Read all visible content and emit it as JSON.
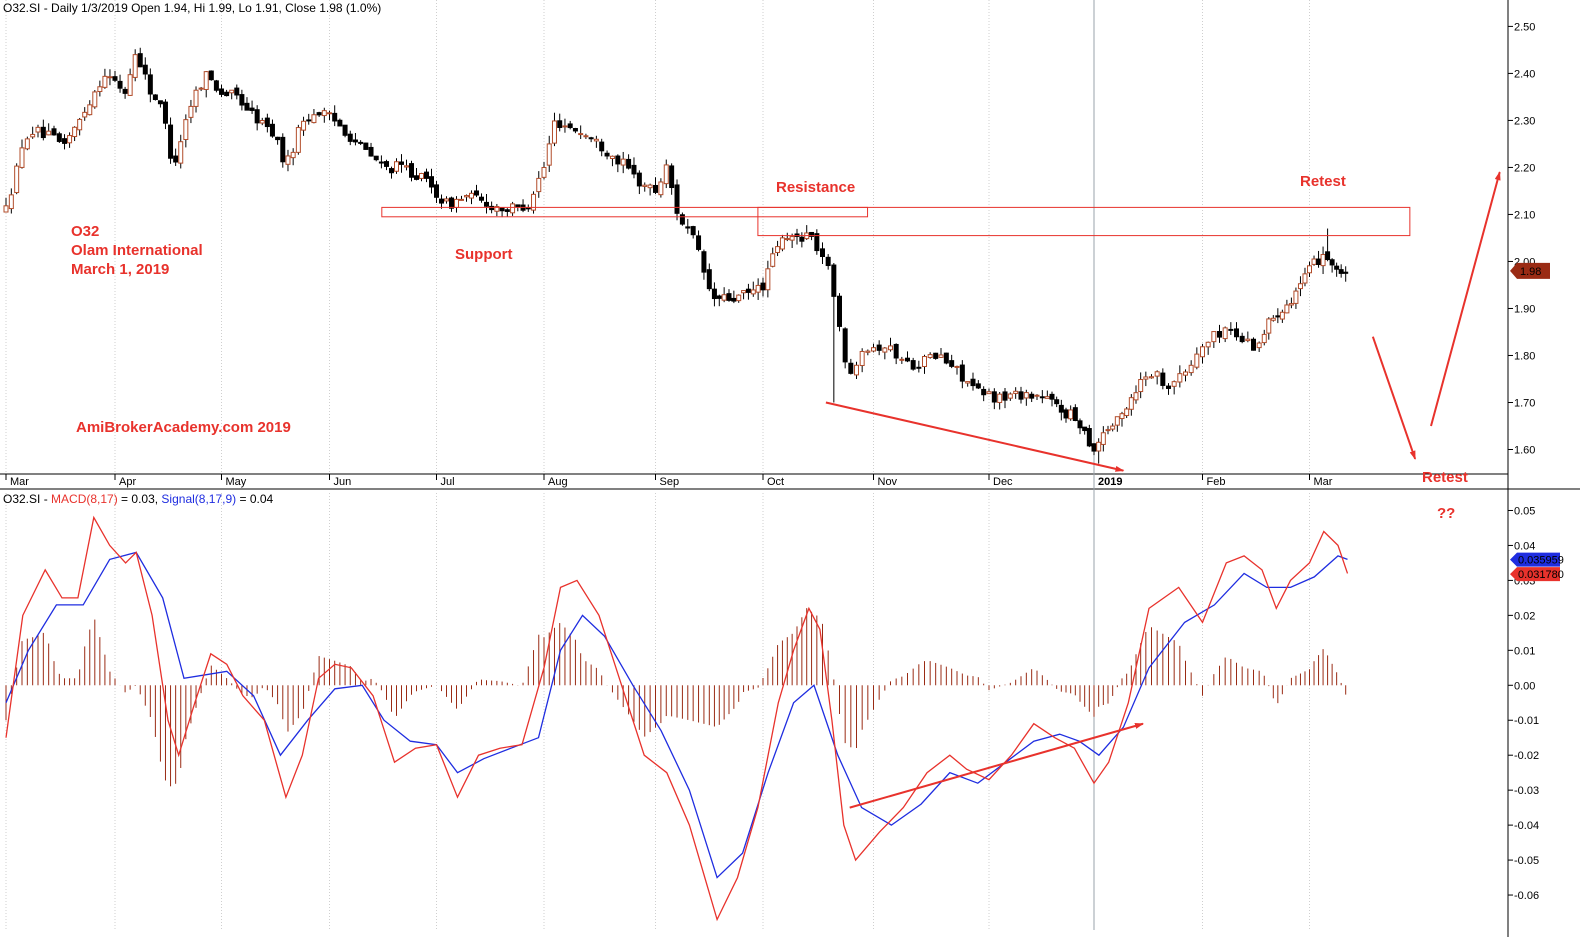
{
  "chart_data": [
    {
      "type": "candlestick",
      "header": {
        "symbol": "O32.SI",
        "info": " - Daily 1/3/2019 Open 1.94, Hi 1.99, Lo 1.91, Close 1.98 (1.0%)"
      },
      "ylim": [
        1.55,
        2.52
      ],
      "y_ticks": [
        "2.50",
        "2.40",
        "2.30",
        "2.20",
        "2.10",
        "2.00",
        "1.90",
        "1.80",
        "1.70",
        "1.60"
      ],
      "months": [
        {
          "label": "Mar",
          "x": 0.5
        },
        {
          "label": "Apr",
          "x": 1.5
        },
        {
          "label": "May",
          "x": 2.5
        },
        {
          "label": "Jun",
          "x": 3.5
        },
        {
          "label": "Jul",
          "x": 4.5
        },
        {
          "label": "Aug",
          "x": 5.5
        },
        {
          "label": "Sep",
          "x": 6.5
        },
        {
          "label": "Oct",
          "x": 7.5
        },
        {
          "label": "Nov",
          "x": 8.5
        },
        {
          "label": "Dec",
          "x": 9.5
        },
        {
          "label": "2019",
          "x": 10.5,
          "bold": true
        },
        {
          "label": "Feb",
          "x": 11.5
        },
        {
          "label": "Mar",
          "x": 12.5
        }
      ],
      "x_range": [
        0,
        13.9
      ],
      "price_path": [
        [
          0.0,
          2.11
        ],
        [
          0.1,
          2.2
        ],
        [
          0.2,
          2.28
        ],
        [
          0.35,
          2.27
        ],
        [
          0.5,
          2.25
        ],
        [
          0.62,
          2.28
        ],
        [
          0.78,
          2.35
        ],
        [
          0.9,
          2.4
        ],
        [
          1.0,
          2.38
        ],
        [
          1.1,
          2.36
        ],
        [
          1.2,
          2.45
        ],
        [
          1.32,
          2.37
        ],
        [
          1.45,
          2.32
        ],
        [
          1.55,
          2.2
        ],
        [
          1.7,
          2.33
        ],
        [
          1.85,
          2.4
        ],
        [
          2.0,
          2.36
        ],
        [
          2.15,
          2.35
        ],
        [
          2.3,
          2.31
        ],
        [
          2.5,
          2.27
        ],
        [
          2.6,
          2.2
        ],
        [
          2.75,
          2.3
        ],
        [
          2.9,
          2.32
        ],
        [
          3.1,
          2.29
        ],
        [
          3.3,
          2.24
        ],
        [
          3.5,
          2.2
        ],
        [
          3.7,
          2.2
        ],
        [
          3.9,
          2.17
        ],
        [
          4.1,
          2.12
        ],
        [
          4.3,
          2.14
        ],
        [
          4.5,
          2.12
        ],
        [
          4.7,
          2.11
        ],
        [
          4.85,
          2.12
        ],
        [
          5.0,
          2.2
        ],
        [
          5.1,
          2.3
        ],
        [
          5.3,
          2.28
        ],
        [
          5.5,
          2.25
        ],
        [
          5.7,
          2.21
        ],
        [
          5.85,
          2.17
        ],
        [
          6.0,
          2.15
        ],
        [
          6.1,
          2.2
        ],
        [
          6.2,
          2.1
        ],
        [
          6.35,
          2.04
        ],
        [
          6.5,
          1.92
        ],
        [
          6.7,
          1.92
        ],
        [
          6.85,
          1.93
        ],
        [
          7.0,
          1.95
        ],
        [
          7.15,
          2.04
        ],
        [
          7.3,
          2.05
        ],
        [
          7.45,
          2.06
        ],
        [
          7.6,
          2.0
        ],
        [
          7.7,
          1.9
        ],
        [
          7.78,
          1.74
        ],
        [
          7.9,
          1.82
        ],
        [
          8.1,
          1.82
        ],
        [
          8.3,
          1.78
        ],
        [
          8.55,
          1.8
        ],
        [
          8.75,
          1.76
        ],
        [
          8.9,
          1.72
        ],
        [
          9.1,
          1.71
        ],
        [
          9.3,
          1.72
        ],
        [
          9.5,
          1.71
        ],
        [
          9.7,
          1.68
        ],
        [
          9.85,
          1.66
        ],
        [
          10.0,
          1.6
        ],
        [
          10.1,
          1.64
        ],
        [
          10.25,
          1.66
        ],
        [
          10.4,
          1.72
        ],
        [
          10.55,
          1.77
        ],
        [
          10.7,
          1.74
        ],
        [
          10.85,
          1.76
        ],
        [
          11.0,
          1.82
        ],
        [
          11.2,
          1.86
        ],
        [
          11.3,
          1.84
        ],
        [
          11.45,
          1.82
        ],
        [
          11.6,
          1.88
        ],
        [
          11.8,
          1.92
        ],
        [
          12.0,
          1.98
        ],
        [
          12.15,
          2.02
        ],
        [
          12.3,
          1.98
        ],
        [
          12.4,
          1.96
        ]
      ],
      "highlights": [
        {
          "x": 7.65,
          "low": 1.7
        },
        {
          "x": 10.05,
          "low": 1.57
        },
        {
          "x": 12.17,
          "high": 2.07
        }
      ],
      "last_price_label": "1.98",
      "zones": [
        {
          "x0": 3.48,
          "x1": 7.95,
          "y0": 2.095,
          "y1": 2.115
        },
        {
          "x0": 6.95,
          "x1": 13.0,
          "y0": 2.055,
          "y1": 2.115
        }
      ],
      "lines": [
        {
          "x0": 7.6,
          "y0": 1.7,
          "x1": 10.3,
          "y1": 1.555
        },
        {
          "x0": 12.65,
          "y0": 1.84,
          "x1": 13.05,
          "y1": 1.58
        },
        {
          "x0": 13.2,
          "y0": 1.65,
          "x1": 13.85,
          "y1": 2.19
        }
      ],
      "annotations": {
        "ticker": "O32",
        "company": "Olam International",
        "date": "March 1, 2019",
        "support": "Support",
        "resistance": "Resistance",
        "retest_top": "Retest",
        "watermark": "AmiBrokerAcademy.com  2019",
        "retest_bottom": "Retest",
        "question": "??"
      }
    },
    {
      "type": "line",
      "header": {
        "symbol": "O32.SI",
        "macd_label": "MACD(8,17)",
        "macd_value": " = 0.03, ",
        "signal_label": "Signal(8,17,9)",
        "signal_value": " = 0.04"
      },
      "ylim": [
        -0.07,
        0.055
      ],
      "y_ticks": [
        "0.05",
        "0.04",
        "0.03",
        "0.02",
        "0.01",
        "0.00",
        "-0.01",
        "-0.02",
        "-0.03",
        "-0.04",
        "-0.05",
        "-0.06"
      ],
      "macd_path": [
        [
          0.0,
          -0.015
        ],
        [
          0.15,
          0.02
        ],
        [
          0.35,
          0.033
        ],
        [
          0.5,
          0.025
        ],
        [
          0.65,
          0.025
        ],
        [
          0.8,
          0.048
        ],
        [
          0.95,
          0.04
        ],
        [
          1.1,
          0.035
        ],
        [
          1.2,
          0.038
        ],
        [
          1.35,
          0.02
        ],
        [
          1.5,
          -0.01
        ],
        [
          1.6,
          -0.02
        ],
        [
          1.75,
          -0.005
        ],
        [
          1.9,
          0.009
        ],
        [
          2.05,
          0.006
        ],
        [
          2.2,
          -0.003
        ],
        [
          2.4,
          -0.01
        ],
        [
          2.6,
          -0.032
        ],
        [
          2.75,
          -0.02
        ],
        [
          2.9,
          0.002
        ],
        [
          3.05,
          0.006
        ],
        [
          3.2,
          0.005
        ],
        [
          3.4,
          -0.003
        ],
        [
          3.6,
          -0.022
        ],
        [
          3.8,
          -0.018
        ],
        [
          4.0,
          -0.017
        ],
        [
          4.2,
          -0.032
        ],
        [
          4.4,
          -0.02
        ],
        [
          4.6,
          -0.018
        ],
        [
          4.8,
          -0.017
        ],
        [
          5.0,
          0.005
        ],
        [
          5.15,
          0.028
        ],
        [
          5.3,
          0.03
        ],
        [
          5.5,
          0.02
        ],
        [
          5.7,
          0.0
        ],
        [
          5.9,
          -0.02
        ],
        [
          6.1,
          -0.025
        ],
        [
          6.3,
          -0.04
        ],
        [
          6.55,
          -0.067
        ],
        [
          6.75,
          -0.055
        ],
        [
          6.95,
          -0.035
        ],
        [
          7.15,
          -0.005
        ],
        [
          7.3,
          0.01
        ],
        [
          7.45,
          0.022
        ],
        [
          7.55,
          0.016
        ],
        [
          7.65,
          -0.01
        ],
        [
          7.75,
          -0.04
        ],
        [
          7.85,
          -0.05
        ],
        [
          8.05,
          -0.042
        ],
        [
          8.25,
          -0.035
        ],
        [
          8.45,
          -0.025
        ],
        [
          8.65,
          -0.02
        ],
        [
          8.8,
          -0.024
        ],
        [
          9.0,
          -0.027
        ],
        [
          9.2,
          -0.02
        ],
        [
          9.4,
          -0.011
        ],
        [
          9.6,
          -0.015
        ],
        [
          9.8,
          -0.018
        ],
        [
          10.0,
          -0.028
        ],
        [
          10.15,
          -0.022
        ],
        [
          10.35,
          -0.005
        ],
        [
          10.55,
          0.022
        ],
        [
          10.8,
          0.028
        ],
        [
          11.0,
          0.018
        ],
        [
          11.2,
          0.035
        ],
        [
          11.35,
          0.037
        ],
        [
          11.5,
          0.033
        ],
        [
          11.65,
          0.022
        ],
        [
          11.8,
          0.03
        ],
        [
          12.0,
          0.035
        ],
        [
          12.15,
          0.044
        ],
        [
          12.3,
          0.04
        ],
        [
          12.4,
          0.032
        ]
      ],
      "signal_path": [
        [
          0.0,
          -0.005
        ],
        [
          0.2,
          0.01
        ],
        [
          0.45,
          0.023
        ],
        [
          0.7,
          0.023
        ],
        [
          0.95,
          0.036
        ],
        [
          1.2,
          0.038
        ],
        [
          1.45,
          0.025
        ],
        [
          1.65,
          0.002
        ],
        [
          1.85,
          0.003
        ],
        [
          2.05,
          0.004
        ],
        [
          2.3,
          -0.003
        ],
        [
          2.55,
          -0.02
        ],
        [
          2.8,
          -0.01
        ],
        [
          3.05,
          -0.001
        ],
        [
          3.3,
          0.0
        ],
        [
          3.5,
          -0.01
        ],
        [
          3.75,
          -0.016
        ],
        [
          4.0,
          -0.017
        ],
        [
          4.2,
          -0.025
        ],
        [
          4.45,
          -0.021
        ],
        [
          4.7,
          -0.018
        ],
        [
          4.95,
          -0.015
        ],
        [
          5.15,
          0.01
        ],
        [
          5.35,
          0.02
        ],
        [
          5.55,
          0.014
        ],
        [
          5.8,
          0.0
        ],
        [
          6.05,
          -0.013
        ],
        [
          6.3,
          -0.03
        ],
        [
          6.55,
          -0.055
        ],
        [
          6.8,
          -0.048
        ],
        [
          7.05,
          -0.025
        ],
        [
          7.3,
          -0.005
        ],
        [
          7.5,
          0.0
        ],
        [
          7.7,
          -0.02
        ],
        [
          7.9,
          -0.035
        ],
        [
          8.15,
          -0.04
        ],
        [
          8.4,
          -0.034
        ],
        [
          8.65,
          -0.025
        ],
        [
          8.9,
          -0.028
        ],
        [
          9.15,
          -0.022
        ],
        [
          9.4,
          -0.016
        ],
        [
          9.65,
          -0.014
        ],
        [
          9.85,
          -0.016
        ],
        [
          10.05,
          -0.02
        ],
        [
          10.3,
          -0.012
        ],
        [
          10.55,
          0.005
        ],
        [
          10.85,
          0.018
        ],
        [
          11.1,
          0.023
        ],
        [
          11.35,
          0.032
        ],
        [
          11.55,
          0.028
        ],
        [
          11.8,
          0.028
        ],
        [
          12.05,
          0.031
        ],
        [
          12.3,
          0.037
        ],
        [
          12.4,
          0.036
        ]
      ],
      "macd_tag": "0.031780",
      "signal_tag": "0.035959",
      "divergence_line": {
        "x0": 7.8,
        "y0": -0.035,
        "x1": 10.5,
        "y1": -0.011
      }
    }
  ]
}
